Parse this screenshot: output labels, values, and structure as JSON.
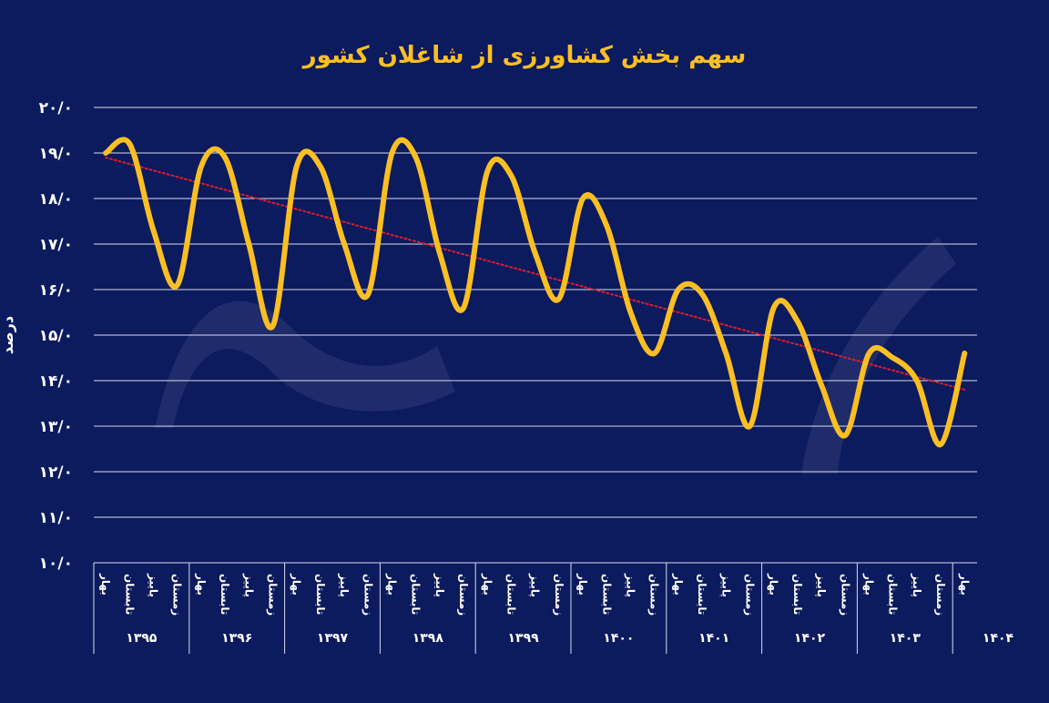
{
  "chart_data": {
    "type": "line",
    "title": "سهم بخش کشاورزی از شاغلان کشور",
    "ylabel": "درصد",
    "ylim": [
      10,
      20
    ],
    "yticks": [
      {
        "value": 20,
        "label": "۲۰/۰"
      },
      {
        "value": 19,
        "label": "۱۹/۰"
      },
      {
        "value": 18,
        "label": "۱۸/۰"
      },
      {
        "value": 17,
        "label": "۱۷/۰"
      },
      {
        "value": 16,
        "label": "۱۶/۰"
      },
      {
        "value": 15,
        "label": "۱۵/۰"
      },
      {
        "value": 14,
        "label": "۱۴/۰"
      },
      {
        "value": 13,
        "label": "۱۳/۰"
      },
      {
        "value": 12,
        "label": "۱۲/۰"
      },
      {
        "value": 11,
        "label": "۱۱/۰"
      },
      {
        "value": 10,
        "label": "۱۰/۰"
      }
    ],
    "seasons": [
      "بهار",
      "تابستان",
      "پاییز",
      "زمستان"
    ],
    "years": [
      "۱۳۹۵",
      "۱۳۹۶",
      "۱۳۹۷",
      "۱۳۹۸",
      "۱۳۹۹",
      "۱۴۰۰",
      "۱۴۰۱",
      "۱۴۰۲",
      "۱۴۰۳",
      "۱۴۰۴"
    ],
    "categories": [
      "بهار ۱۳۹۵",
      "تابستان ۱۳۹۵",
      "پاییز ۱۳۹۵",
      "زمستان ۱۳۹۵",
      "بهار ۱۳۹۶",
      "تابستان ۱۳۹۶",
      "پاییز ۱۳۹۶",
      "زمستان ۱۳۹۶",
      "بهار ۱۳۹۷",
      "تابستان ۱۳۹۷",
      "پاییز ۱۳۹۷",
      "زمستان ۱۳۹۷",
      "بهار ۱۳۹۸",
      "تابستان ۱۳۹۸",
      "پاییز ۱۳۹۸",
      "زمستان ۱۳۹۸",
      "بهار ۱۳۹۹",
      "تابستان ۱۳۹۹",
      "پاییز ۱۳۹۹",
      "زمستان ۱۳۹۹",
      "بهار ۱۴۰۰",
      "تابستان ۱۴۰۰",
      "پاییز ۱۴۰۰",
      "زمستان ۱۴۰۰",
      "بهار ۱۴۰۱",
      "تابستان ۱۴۰۱",
      "پاییز ۱۴۰۱",
      "زمستان ۱۴۰۱",
      "بهار ۱۴۰۲",
      "تابستان ۱۴۰۲",
      "پاییز ۱۴۰۲",
      "زمستان ۱۴۰۲",
      "بهار ۱۴۰۳",
      "تابستان ۱۴۰۳",
      "پاییز ۱۴۰۳",
      "زمستان ۱۴۰۳",
      "بهار ۱۴۰۴"
    ],
    "series": [
      {
        "values": [
          19.0,
          19.2,
          17.3,
          16.1,
          18.7,
          18.9,
          17.0,
          15.2,
          18.7,
          18.7,
          17.0,
          15.9,
          19.0,
          18.9,
          16.8,
          15.6,
          18.6,
          18.5,
          16.8,
          15.8,
          18.0,
          17.4,
          15.5,
          14.6,
          16.0,
          15.9,
          14.6,
          13.0,
          15.6,
          15.3,
          13.9,
          12.8,
          14.6,
          14.5,
          14.0,
          12.6,
          14.6
        ]
      }
    ],
    "trendline": {
      "start": 18.9,
      "end": 13.8,
      "style": "dotted"
    },
    "grid": true,
    "colors": {
      "background": "#0c1a5e",
      "line": "#fbbf24",
      "trend": "#e11d2a",
      "grid": "#d8dcec",
      "text": "#ffffff",
      "title": "#fbbf24"
    }
  }
}
